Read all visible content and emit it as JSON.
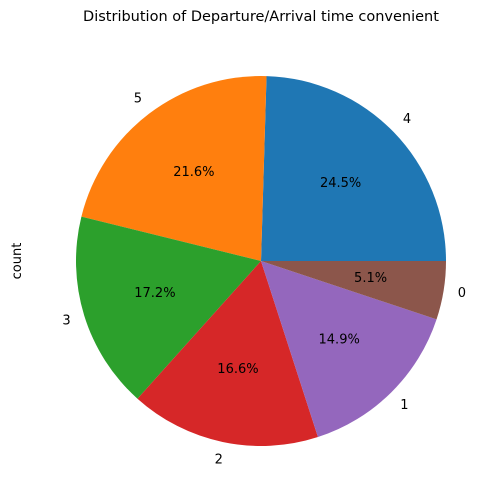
{
  "chart_data": {
    "type": "pie",
    "title": "Distribution of Departure/Arrival time convenient",
    "ylabel": "count",
    "xlabel": "",
    "start_angle_deg": 0,
    "direction": "counterclockwise",
    "slices": [
      {
        "label": "4",
        "percent": 24.5,
        "pct_text": "24.5%",
        "color": "#1f77b4"
      },
      {
        "label": "5",
        "percent": 21.6,
        "pct_text": "21.6%",
        "color": "#ff7f0e"
      },
      {
        "label": "3",
        "percent": 17.2,
        "pct_text": "17.2%",
        "color": "#2ca02c"
      },
      {
        "label": "2",
        "percent": 16.6,
        "pct_text": "16.6%",
        "color": "#d62728"
      },
      {
        "label": "1",
        "percent": 14.9,
        "pct_text": "14.9%",
        "color": "#9467bd"
      },
      {
        "label": "0",
        "percent": 5.1,
        "pct_text": "5.1%",
        "color": "#8c564b"
      }
    ]
  }
}
